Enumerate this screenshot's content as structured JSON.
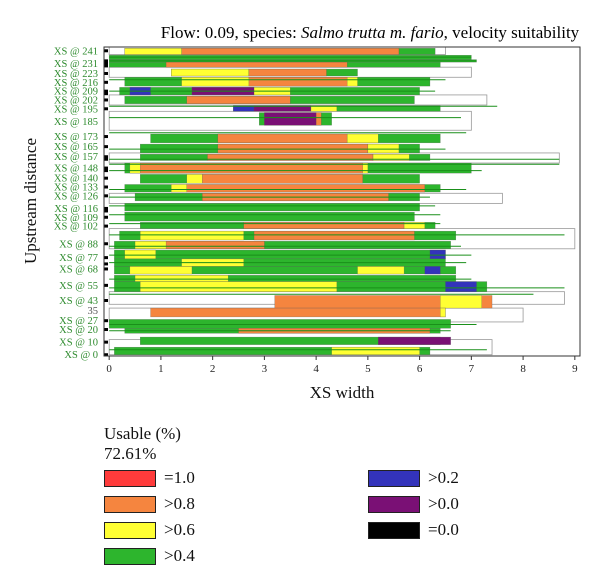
{
  "chart_data": {
    "type": "bar",
    "title_parts": [
      {
        "text": "Flow: 0.09, species: ",
        "italic": false
      },
      {
        "text": "Salmo trutta m. fario",
        "italic": true
      },
      {
        "text": ", velocity suitability",
        "italic": false
      }
    ],
    "xlabel": "XS width",
    "ylabel": "Upstream distance",
    "xlim": [
      -0.1,
      9.1
    ],
    "ylim": [
      -1,
      244
    ],
    "xticks": [
      "0",
      "1",
      "2",
      "3",
      "4",
      "5",
      "6",
      "7",
      "8",
      "9"
    ],
    "ytick_labels": [
      {
        "label": "XS @ 241",
        "y": 241,
        "plain": false
      },
      {
        "label": "XS @ 231",
        "y": 231,
        "plain": false
      },
      {
        "label": "XS @ 223",
        "y": 223,
        "plain": false
      },
      {
        "label": "XS @ 216",
        "y": 216,
        "plain": false
      },
      {
        "label": "XS @ 209",
        "y": 209,
        "plain": false
      },
      {
        "label": "XS @ 202",
        "y": 202,
        "plain": false
      },
      {
        "label": "XS @ 195",
        "y": 195,
        "plain": false
      },
      {
        "label": "XS @ 185",
        "y": 185,
        "plain": false
      },
      {
        "label": "XS @ 173",
        "y": 173,
        "plain": false
      },
      {
        "label": "XS @ 165",
        "y": 165,
        "plain": false
      },
      {
        "label": "XS @ 157",
        "y": 157,
        "plain": false
      },
      {
        "label": "XS @ 148",
        "y": 148,
        "plain": false
      },
      {
        "label": "XS @ 140",
        "y": 140,
        "plain": false
      },
      {
        "label": "XS @ 133",
        "y": 133,
        "plain": false
      },
      {
        "label": "XS @ 126",
        "y": 126,
        "plain": false
      },
      {
        "label": "XS @ 116",
        "y": 116,
        "plain": false
      },
      {
        "label": "XS @ 109",
        "y": 109,
        "plain": false
      },
      {
        "label": "XS @ 102",
        "y": 102,
        "plain": false
      },
      {
        "label": "XS @ 88",
        "y": 88,
        "plain": false
      },
      {
        "label": "XS @ 77",
        "y": 77,
        "plain": false
      },
      {
        "label": "XS @ 68",
        "y": 68,
        "plain": false
      },
      {
        "label": "XS @ 55",
        "y": 55,
        "plain": false
      },
      {
        "label": "XS @ 43",
        "y": 43,
        "plain": false
      },
      {
        "label": "35",
        "y": 35,
        "plain": true
      },
      {
        "label": "XS @ 27",
        "y": 27,
        "plain": false
      },
      {
        "label": "XS @ 20",
        "y": 20,
        "plain": false
      },
      {
        "label": "XS @ 10",
        "y": 10,
        "plain": false
      },
      {
        "label": "XS @ 0",
        "y": 0,
        "plain": false
      }
    ],
    "colors": {
      "eq1": "#ff3b3b",
      "gt08": "#f5853f",
      "gt06": "#ffff33",
      "gt04": "#2db52d",
      "gt02": "#3333bb",
      "gt00": "#7a1075",
      "eq0": "#000000",
      "empty_outline": "#999999",
      "green_line": "#1a8f1a"
    },
    "segments": [
      {
        "y0": 238,
        "y1": 243,
        "x0": 0.3,
        "x1": 6.3,
        "cls": "gt04"
      },
      {
        "y0": 238,
        "y1": 243,
        "x0": 1.4,
        "x1": 5.6,
        "cls": "gt08"
      },
      {
        "y0": 238,
        "y1": 243,
        "x0": 0.3,
        "x1": 1.4,
        "cls": "gt06"
      },
      {
        "y0": 234,
        "y1": 237.5,
        "x0": 0.0,
        "x1": 7.0,
        "cls": "gt04"
      },
      {
        "y0": 232,
        "y1": 234,
        "x0": 0.0,
        "x1": 7.1,
        "cls": "gt04"
      },
      {
        "y0": 228,
        "y1": 232,
        "x0": 0.0,
        "x1": 6.4,
        "cls": "gt04"
      },
      {
        "y0": 228,
        "y1": 232,
        "x0": 1.1,
        "x1": 4.6,
        "cls": "gt08"
      },
      {
        "y0": 221,
        "y1": 226.5,
        "x0": 1.2,
        "x1": 4.8,
        "cls": "gt04"
      },
      {
        "y0": 221,
        "y1": 226.5,
        "x0": 1.2,
        "x1": 2.7,
        "cls": "gt06"
      },
      {
        "y0": 221,
        "y1": 226.5,
        "x0": 2.7,
        "x1": 4.2,
        "cls": "gt08"
      },
      {
        "y0": 213,
        "y1": 220,
        "x0": 0.3,
        "x1": 6.2,
        "cls": "gt04"
      },
      {
        "y0": 213,
        "y1": 220,
        "x0": 1.4,
        "x1": 4.8,
        "cls": "gt06"
      },
      {
        "y0": 213,
        "y1": 220,
        "x0": 2.7,
        "x1": 4.6,
        "cls": "gt08"
      },
      {
        "y0": 206,
        "y1": 212,
        "x0": 0.2,
        "x1": 6.0,
        "cls": "gt04"
      },
      {
        "y0": 206,
        "y1": 212,
        "x0": 0.4,
        "x1": 0.8,
        "cls": "gt02"
      },
      {
        "y0": 206,
        "y1": 212,
        "x0": 1.6,
        "x1": 3.5,
        "cls": "gt06"
      },
      {
        "y0": 206,
        "y1": 212,
        "x0": 1.6,
        "x1": 2.8,
        "cls": "gt00"
      },
      {
        "y0": 199,
        "y1": 205,
        "x0": 0.3,
        "x1": 5.9,
        "cls": "gt04"
      },
      {
        "y0": 199,
        "y1": 205,
        "x0": 1.5,
        "x1": 3.5,
        "cls": "gt08"
      },
      {
        "y0": 193,
        "y1": 197.5,
        "x0": 2.4,
        "x1": 6.4,
        "cls": "gt04"
      },
      {
        "y0": 193,
        "y1": 197.5,
        "x0": 2.4,
        "x1": 2.8,
        "cls": "gt02"
      },
      {
        "y0": 193,
        "y1": 197.5,
        "x0": 2.8,
        "x1": 3.9,
        "cls": "gt00"
      },
      {
        "y0": 193,
        "y1": 197.5,
        "x0": 3.9,
        "x1": 4.4,
        "cls": "gt06"
      },
      {
        "y0": 182,
        "y1": 192,
        "x0": 2.9,
        "x1": 4.3,
        "cls": "gt04"
      },
      {
        "y0": 182,
        "y1": 192,
        "x0": 3.0,
        "x1": 4.1,
        "cls": "gt08"
      },
      {
        "y0": 182,
        "y1": 192,
        "x0": 3.0,
        "x1": 4.0,
        "cls": "gt00"
      },
      {
        "y0": 168,
        "y1": 175,
        "x0": 0.8,
        "x1": 6.4,
        "cls": "gt04"
      },
      {
        "y0": 168,
        "y1": 175,
        "x0": 2.1,
        "x1": 4.6,
        "cls": "gt08"
      },
      {
        "y0": 168,
        "y1": 175,
        "x0": 4.6,
        "x1": 5.2,
        "cls": "gt06"
      },
      {
        "y0": 160,
        "y1": 167,
        "x0": 0.6,
        "x1": 6.0,
        "cls": "gt04"
      },
      {
        "y0": 160,
        "y1": 167,
        "x0": 2.1,
        "x1": 5.0,
        "cls": "gt08"
      },
      {
        "y0": 160,
        "y1": 167,
        "x0": 5.0,
        "x1": 5.6,
        "cls": "gt06"
      },
      {
        "y0": 154,
        "y1": 159,
        "x0": 0.6,
        "x1": 6.2,
        "cls": "gt04"
      },
      {
        "y0": 154,
        "y1": 159,
        "x0": 1.9,
        "x1": 5.1,
        "cls": "gt08"
      },
      {
        "y0": 154,
        "y1": 159,
        "x0": 5.1,
        "x1": 5.8,
        "cls": "gt06"
      },
      {
        "y0": 144,
        "y1": 152,
        "x0": 0.3,
        "x1": 7.0,
        "cls": "gt04"
      },
      {
        "y0": 144,
        "y1": 152,
        "x0": 0.4,
        "x1": 5.0,
        "cls": "gt06"
      },
      {
        "y0": 144,
        "y1": 152,
        "x0": 0.6,
        "x1": 4.9,
        "cls": "gt08"
      },
      {
        "y0": 136,
        "y1": 143,
        "x0": 0.6,
        "x1": 6.0,
        "cls": "gt04"
      },
      {
        "y0": 136,
        "y1": 143,
        "x0": 1.8,
        "x1": 4.9,
        "cls": "gt08"
      },
      {
        "y0": 136,
        "y1": 143,
        "x0": 1.5,
        "x1": 1.8,
        "cls": "gt06"
      },
      {
        "y0": 129,
        "y1": 135,
        "x0": 0.3,
        "x1": 6.4,
        "cls": "gt04"
      },
      {
        "y0": 129,
        "y1": 135,
        "x0": 1.5,
        "x1": 6.1,
        "cls": "gt08"
      },
      {
        "y0": 129,
        "y1": 135,
        "x0": 1.2,
        "x1": 1.5,
        "cls": "gt06"
      },
      {
        "y0": 122,
        "y1": 128,
        "x0": 0.5,
        "x1": 6.0,
        "cls": "gt04"
      },
      {
        "y0": 122,
        "y1": 128,
        "x0": 1.8,
        "x1": 5.4,
        "cls": "gt08"
      },
      {
        "y0": 114,
        "y1": 120,
        "x0": 0.3,
        "x1": 6.0,
        "cls": "gt04"
      },
      {
        "y0": 106,
        "y1": 113,
        "x0": 0.3,
        "x1": 5.9,
        "cls": "gt04"
      },
      {
        "y0": 100,
        "y1": 105,
        "x0": 0.6,
        "x1": 6.3,
        "cls": "gt04"
      },
      {
        "y0": 100,
        "y1": 105,
        "x0": 2.6,
        "x1": 5.7,
        "cls": "gt08"
      },
      {
        "y0": 100,
        "y1": 105,
        "x0": 5.7,
        "x1": 6.1,
        "cls": "gt06"
      },
      {
        "y0": 91,
        "y1": 98,
        "x0": 0.2,
        "x1": 6.7,
        "cls": "gt04"
      },
      {
        "y0": 91,
        "y1": 98,
        "x0": 0.6,
        "x1": 2.6,
        "cls": "gt06"
      },
      {
        "y0": 91,
        "y1": 98,
        "x0": 2.8,
        "x1": 5.9,
        "cls": "gt08"
      },
      {
        "y0": 84,
        "y1": 90,
        "x0": 0.1,
        "x1": 6.6,
        "cls": "gt04"
      },
      {
        "y0": 84,
        "y1": 90,
        "x0": 0.5,
        "x1": 3.0,
        "cls": "gt06"
      },
      {
        "y0": 84,
        "y1": 90,
        "x0": 1.1,
        "x1": 3.0,
        "cls": "gt08"
      },
      {
        "y0": 76,
        "y1": 83,
        "x0": 0.1,
        "x1": 6.5,
        "cls": "gt04"
      },
      {
        "y0": 76,
        "y1": 83,
        "x0": 0.3,
        "x1": 0.9,
        "cls": "gt06"
      },
      {
        "y0": 76,
        "y1": 83,
        "x0": 6.2,
        "x1": 6.5,
        "cls": "gt02"
      },
      {
        "y0": 70,
        "y1": 76,
        "x0": 0.1,
        "x1": 6.5,
        "cls": "gt04"
      },
      {
        "y0": 70,
        "y1": 76,
        "x0": 1.4,
        "x1": 2.6,
        "cls": "gt06"
      },
      {
        "y0": 64,
        "y1": 70,
        "x0": 0.1,
        "x1": 6.7,
        "cls": "gt04"
      },
      {
        "y0": 64,
        "y1": 70,
        "x0": 0.4,
        "x1": 1.6,
        "cls": "gt06"
      },
      {
        "y0": 64,
        "y1": 70,
        "x0": 4.8,
        "x1": 5.7,
        "cls": "gt06"
      },
      {
        "y0": 64,
        "y1": 70,
        "x0": 6.1,
        "x1": 6.4,
        "cls": "gt02"
      },
      {
        "y0": 58,
        "y1": 63,
        "x0": 0.1,
        "x1": 6.7,
        "cls": "gt04"
      },
      {
        "y0": 58,
        "y1": 63,
        "x0": 0.5,
        "x1": 2.3,
        "cls": "gt06"
      },
      {
        "y0": 50,
        "y1": 58,
        "x0": 0.1,
        "x1": 7.3,
        "cls": "gt04"
      },
      {
        "y0": 50,
        "y1": 58,
        "x0": 0.6,
        "x1": 4.4,
        "cls": "gt06"
      },
      {
        "y0": 50,
        "y1": 58,
        "x0": 6.5,
        "x1": 7.1,
        "cls": "gt02"
      },
      {
        "y0": 37,
        "y1": 47,
        "x0": 3.2,
        "x1": 7.4,
        "cls": "gt08"
      },
      {
        "y0": 37,
        "y1": 47,
        "x0": 6.4,
        "x1": 7.2,
        "cls": "gt06"
      },
      {
        "y0": 30,
        "y1": 37,
        "x0": 0.8,
        "x1": 6.5,
        "cls": "gt08"
      },
      {
        "y0": 30,
        "y1": 37,
        "x0": 6.4,
        "x1": 6.5,
        "cls": "gt06"
      },
      {
        "y0": 21,
        "y1": 28,
        "x0": 0.0,
        "x1": 6.6,
        "cls": "gt04"
      },
      {
        "y0": 17,
        "y1": 21,
        "x0": 0.3,
        "x1": 6.4,
        "cls": "gt04"
      },
      {
        "y0": 17,
        "y1": 21,
        "x0": 2.5,
        "x1": 6.2,
        "cls": "gt08"
      },
      {
        "y0": 8,
        "y1": 14,
        "x0": 0.6,
        "x1": 6.4,
        "cls": "gt04"
      },
      {
        "y0": 8,
        "y1": 14,
        "x0": 5.2,
        "x1": 6.6,
        "cls": "gt00"
      },
      {
        "y0": 0,
        "y1": 6,
        "x0": 0.1,
        "x1": 6.2,
        "cls": "gt04"
      },
      {
        "y0": 0,
        "y1": 6,
        "x0": 4.3,
        "x1": 6.0,
        "cls": "gt06"
      }
    ],
    "outlines": [
      {
        "y0": 238,
        "y1": 244,
        "x0": 0.0,
        "x1": 6.5
      },
      {
        "y0": 220,
        "y1": 228,
        "x0": 0.0,
        "x1": 7.0
      },
      {
        "y0": 198,
        "y1": 206,
        "x0": 0.0,
        "x1": 7.3
      },
      {
        "y0": 178,
        "y1": 193,
        "x0": 0.0,
        "x1": 7.0
      },
      {
        "y0": 152,
        "y1": 160,
        "x0": 0.0,
        "x1": 8.7
      },
      {
        "y0": 120,
        "y1": 128,
        "x0": 0.0,
        "x1": 7.6
      },
      {
        "y0": 84,
        "y1": 100,
        "x0": 0.0,
        "x1": 9.0
      },
      {
        "y0": 40,
        "y1": 50,
        "x0": 0.0,
        "x1": 8.8
      },
      {
        "y0": 26,
        "y1": 37,
        "x0": 0.0,
        "x1": 8.0
      },
      {
        "y0": 0,
        "y1": 12,
        "x0": 0.0,
        "x1": 7.4
      }
    ],
    "green_lines": [
      {
        "y": 236,
        "x0": 0.0,
        "x1": 7.0
      },
      {
        "y": 233,
        "x0": 0.0,
        "x1": 7.1
      },
      {
        "y": 218,
        "x0": 0.0,
        "x1": 6.5
      },
      {
        "y": 209,
        "x0": 0.0,
        "x1": 6.3
      },
      {
        "y": 197,
        "x0": 0.0,
        "x1": 7.5
      },
      {
        "y": 188,
        "x0": 0.0,
        "x1": 6.8
      },
      {
        "y": 176,
        "x0": 0.0,
        "x1": 6.9
      },
      {
        "y": 163,
        "x0": 0.0,
        "x1": 6.5
      },
      {
        "y": 155,
        "x0": 0.0,
        "x1": 8.7
      },
      {
        "y": 151,
        "x0": 0.0,
        "x1": 8.7
      },
      {
        "y": 146,
        "x0": 0.0,
        "x1": 7.2
      },
      {
        "y": 131,
        "x0": 0.0,
        "x1": 6.9
      },
      {
        "y": 125,
        "x0": 0.0,
        "x1": 6.2
      },
      {
        "y": 118,
        "x0": 0.0,
        "x1": 6.3
      },
      {
        "y": 111,
        "x0": 0.0,
        "x1": 6.4
      },
      {
        "y": 104,
        "x0": 0.0,
        "x1": 6.4
      },
      {
        "y": 95,
        "x0": 0.0,
        "x1": 8.8
      },
      {
        "y": 86,
        "x0": 0.0,
        "x1": 6.8
      },
      {
        "y": 79,
        "x0": 0.0,
        "x1": 7.0
      },
      {
        "y": 73,
        "x0": 0.0,
        "x1": 6.9
      },
      {
        "y": 60,
        "x0": 0.0,
        "x1": 7.0
      },
      {
        "y": 53,
        "x0": 0.0,
        "x1": 8.8
      },
      {
        "y": 48,
        "x0": 0.0,
        "x1": 8.2
      },
      {
        "y": 24,
        "x0": 0.0,
        "x1": 7.1
      },
      {
        "y": 19,
        "x0": 0.0,
        "x1": 6.6
      },
      {
        "y": 4,
        "x0": 0.0,
        "x1": 7.3
      }
    ],
    "black_ticks": [
      241,
      233,
      231,
      229,
      223,
      216,
      209,
      207,
      202,
      195,
      173,
      165,
      157,
      155,
      148,
      146,
      140,
      133,
      126,
      116,
      114,
      109,
      102,
      88,
      77,
      72,
      68,
      55,
      43,
      27,
      20,
      10,
      0
    ]
  },
  "legend": {
    "title": "Usable (%)",
    "value": "72.61%",
    "items": [
      {
        "label": "=1.0",
        "color": "#ff3b3b"
      },
      {
        "label": ">0.8",
        "color": "#f5853f"
      },
      {
        "label": ">0.6",
        "color": "#ffff33"
      },
      {
        "label": ">0.4",
        "color": "#2db52d"
      },
      {
        "label": ">0.2",
        "color": "#3333bb"
      },
      {
        "label": ">0.0",
        "color": "#7a1075"
      },
      {
        "label": "=0.0",
        "color": "#000000"
      }
    ]
  }
}
